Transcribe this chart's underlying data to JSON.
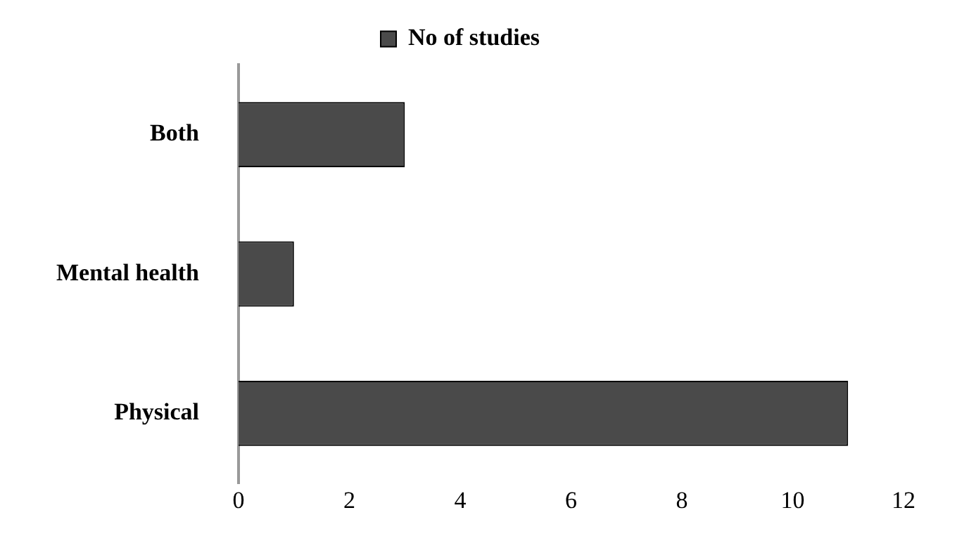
{
  "chart_data": {
    "type": "bar",
    "orientation": "horizontal",
    "categories": [
      "Both",
      "Mental health",
      "Physical"
    ],
    "series": [
      {
        "name": "No of studies",
        "color": "#4a4a4a",
        "values": [
          3,
          1,
          11
        ]
      }
    ],
    "xlim": [
      0,
      12
    ],
    "xticks": [
      0,
      2,
      4,
      6,
      8,
      10,
      12
    ],
    "grid": false,
    "legend": "top"
  }
}
